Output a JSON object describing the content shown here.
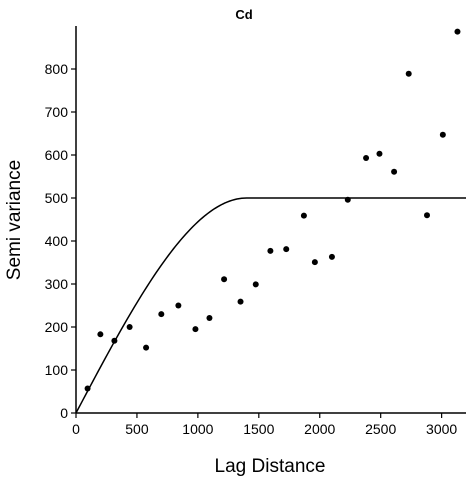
{
  "chart_data": {
    "type": "scatter",
    "title": "Cd",
    "xlabel": "Lag Distance",
    "ylabel": "Semi variance",
    "xlim": [
      0,
      3200
    ],
    "ylim": [
      0,
      900
    ],
    "x_ticks": [
      "0",
      "500",
      "1000",
      "1500",
      "2000",
      "2500",
      "3000"
    ],
    "y_ticks": [
      "0",
      "100",
      "200",
      "300",
      "400",
      "500",
      "600",
      "700",
      "800"
    ],
    "grid": false,
    "legend": "none",
    "series": [
      {
        "type": "scatter",
        "points": [
          {
            "x": 95,
            "y": 57
          },
          {
            "x": 200,
            "y": 183
          },
          {
            "x": 315,
            "y": 168
          },
          {
            "x": 440,
            "y": 200
          },
          {
            "x": 575,
            "y": 152
          },
          {
            "x": 700,
            "y": 230
          },
          {
            "x": 840,
            "y": 250
          },
          {
            "x": 980,
            "y": 195
          },
          {
            "x": 1095,
            "y": 221
          },
          {
            "x": 1215,
            "y": 311
          },
          {
            "x": 1350,
            "y": 259
          },
          {
            "x": 1475,
            "y": 299
          },
          {
            "x": 1595,
            "y": 377
          },
          {
            "x": 1725,
            "y": 381
          },
          {
            "x": 1870,
            "y": 459
          },
          {
            "x": 1960,
            "y": 351
          },
          {
            "x": 2100,
            "y": 363
          },
          {
            "x": 2230,
            "y": 496
          },
          {
            "x": 2380,
            "y": 593
          },
          {
            "x": 2490,
            "y": 603
          },
          {
            "x": 2610,
            "y": 561
          },
          {
            "x": 2730,
            "y": 789
          },
          {
            "x": 2880,
            "y": 460
          },
          {
            "x": 3010,
            "y": 647
          },
          {
            "x": 3130,
            "y": 887
          }
        ]
      },
      {
        "type": "line",
        "model": "spherical",
        "sill": 500,
        "range": 1400,
        "nugget": 0
      }
    ]
  }
}
